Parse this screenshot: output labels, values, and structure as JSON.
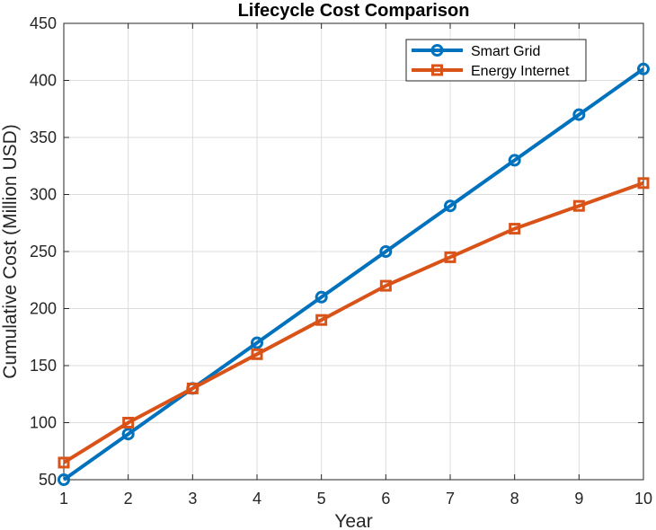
{
  "chart_data": {
    "type": "line",
    "title": "Lifecycle Cost Comparison",
    "xlabel": "Year",
    "ylabel": "Cumulative Cost (Million USD)",
    "x": [
      1,
      2,
      3,
      4,
      5,
      6,
      7,
      8,
      9,
      10
    ],
    "xlim": [
      1,
      10
    ],
    "ylim": [
      50,
      450
    ],
    "xticks": [
      1,
      2,
      3,
      4,
      5,
      6,
      7,
      8,
      9,
      10
    ],
    "yticks": [
      50,
      100,
      150,
      200,
      250,
      300,
      350,
      400,
      450
    ],
    "grid": true,
    "legend_position": "top-right",
    "series": [
      {
        "name": "Smart Grid",
        "color": "#0072BD",
        "marker": "circle",
        "values": [
          50,
          90,
          130,
          170,
          210,
          250,
          290,
          330,
          370,
          410
        ]
      },
      {
        "name": "Energy Internet",
        "color": "#D95319",
        "marker": "square",
        "values": [
          65,
          100,
          130,
          160,
          190,
          220,
          245,
          270,
          290,
          310
        ]
      }
    ]
  }
}
